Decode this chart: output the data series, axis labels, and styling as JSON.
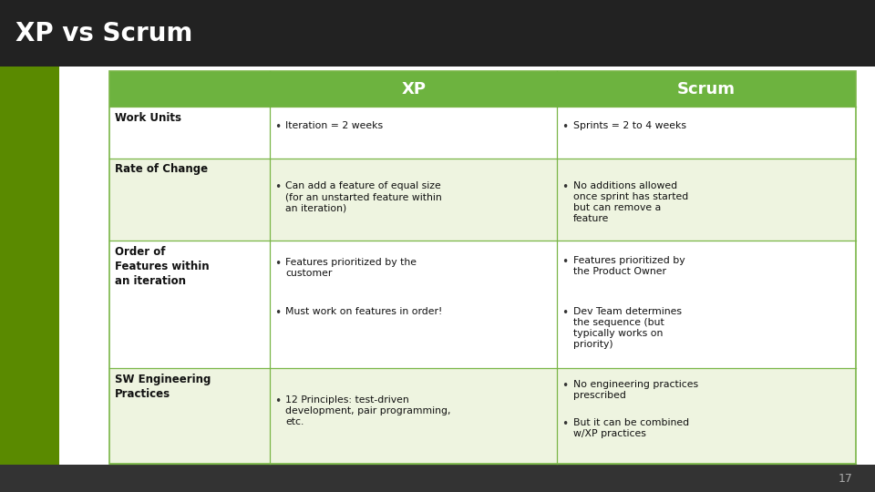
{
  "title": "XP vs Scrum",
  "slide_bg": "#ffffff",
  "title_bar_bg": "#222222",
  "title_color": "#ffffff",
  "title_fontsize": 20,
  "header_bg": "#6db33f",
  "header_text_color": "#ffffff",
  "header_fontsize": 13,
  "table_bg_light": "#eef4e0",
  "table_bg_white": "#ffffff",
  "border_color": "#7ab648",
  "cell_text_color": "#111111",
  "left_bar_color": "#5a8a00",
  "bottom_bar_bg": "#333333",
  "page_number": "17",
  "rows": [
    {
      "label": "Work Units",
      "xp": [
        "Iteration = 2 weeks"
      ],
      "scrum": [
        "Sprints = 2 to 4 weeks"
      ],
      "bg": "#ffffff"
    },
    {
      "label": "Rate of Change",
      "xp": [
        "Can add a feature of equal size\n(for an unstarted feature within\nan iteration)"
      ],
      "scrum": [
        "No additions allowed\nonce sprint has started\nbut can remove a\nfeature"
      ],
      "bg": "#eef4e0"
    },
    {
      "label": "Order of\nFeatures within\nan iteration",
      "xp": [
        "Features prioritized by the\ncustomer",
        "Must work on features in order!"
      ],
      "scrum": [
        "Features prioritized by\nthe Product Owner",
        "Dev Team determines\nthe sequence (but\ntypically works on\npriority)"
      ],
      "bg": "#ffffff"
    },
    {
      "label": "SW Engineering\nPractices",
      "xp": [
        "12 Principles: test-driven\ndevelopment, pair programming,\netc."
      ],
      "scrum": [
        "No engineering practices\nprescribed",
        "But it can be combined\nw/XP practices"
      ],
      "bg": "#eef4e0"
    }
  ]
}
